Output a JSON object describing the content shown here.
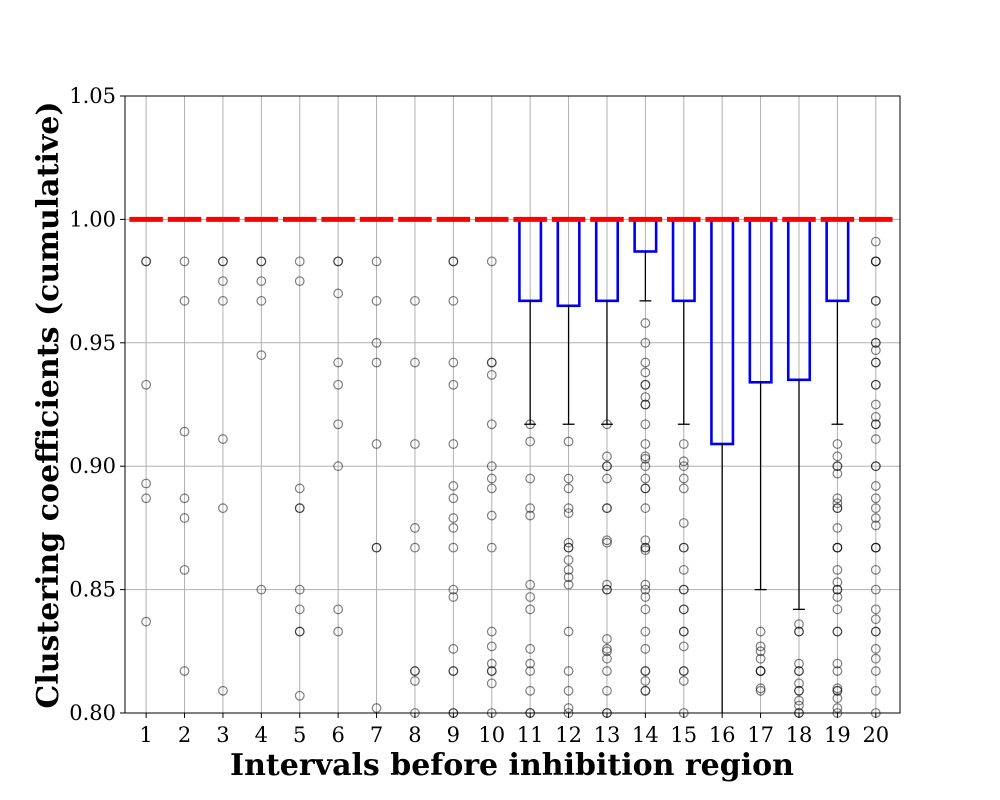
{
  "chart_data": {
    "type": "box",
    "title": "",
    "xlabel": "Intervals before inhibition region",
    "ylabel": "Clustering coefficients (cumulative)",
    "ylim": [
      0.8,
      1.05
    ],
    "yticks": [
      0.8,
      0.85,
      0.9,
      0.95,
      1.0,
      1.05
    ],
    "ytick_labels": [
      "0.80",
      "0.85",
      "0.90",
      "0.95",
      "1.00",
      "1.05"
    ],
    "categories": [
      "1",
      "2",
      "3",
      "4",
      "5",
      "6",
      "7",
      "8",
      "9",
      "10",
      "11",
      "12",
      "13",
      "14",
      "15",
      "16",
      "17",
      "18",
      "19",
      "20"
    ],
    "grid": true,
    "median_color": "#ff0000",
    "box_color": "#0000ee",
    "whisker_color": "#000000",
    "boxes": [
      {
        "q1": 1.0,
        "median": 1.0,
        "q3": 1.0,
        "whislo": 1.0,
        "whishi": 1.0
      },
      {
        "q1": 1.0,
        "median": 1.0,
        "q3": 1.0,
        "whislo": 1.0,
        "whishi": 1.0
      },
      {
        "q1": 1.0,
        "median": 1.0,
        "q3": 1.0,
        "whislo": 1.0,
        "whishi": 1.0
      },
      {
        "q1": 1.0,
        "median": 1.0,
        "q3": 1.0,
        "whislo": 1.0,
        "whishi": 1.0
      },
      {
        "q1": 1.0,
        "median": 1.0,
        "q3": 1.0,
        "whislo": 1.0,
        "whishi": 1.0
      },
      {
        "q1": 1.0,
        "median": 1.0,
        "q3": 1.0,
        "whislo": 1.0,
        "whishi": 1.0
      },
      {
        "q1": 1.0,
        "median": 1.0,
        "q3": 1.0,
        "whislo": 1.0,
        "whishi": 1.0
      },
      {
        "q1": 1.0,
        "median": 1.0,
        "q3": 1.0,
        "whislo": 1.0,
        "whishi": 1.0
      },
      {
        "q1": 1.0,
        "median": 1.0,
        "q3": 1.0,
        "whislo": 1.0,
        "whishi": 1.0
      },
      {
        "q1": 1.0,
        "median": 1.0,
        "q3": 1.0,
        "whislo": 1.0,
        "whishi": 1.0
      },
      {
        "q1": 0.967,
        "median": 1.0,
        "q3": 1.0,
        "whislo": 0.917,
        "whishi": 1.0
      },
      {
        "q1": 0.965,
        "median": 1.0,
        "q3": 1.0,
        "whislo": 0.917,
        "whishi": 1.0
      },
      {
        "q1": 0.967,
        "median": 1.0,
        "q3": 1.0,
        "whislo": 0.917,
        "whishi": 1.0
      },
      {
        "q1": 0.987,
        "median": 1.0,
        "q3": 1.0,
        "whislo": 0.967,
        "whishi": 1.0
      },
      {
        "q1": 0.967,
        "median": 1.0,
        "q3": 1.0,
        "whislo": 0.917,
        "whishi": 1.0
      },
      {
        "q1": 0.909,
        "median": 1.0,
        "q3": 1.0,
        "whislo": 0.78,
        "whishi": 1.0
      },
      {
        "q1": 0.934,
        "median": 1.0,
        "q3": 1.0,
        "whislo": 0.85,
        "whishi": 1.0
      },
      {
        "q1": 0.935,
        "median": 1.0,
        "q3": 1.0,
        "whislo": 0.842,
        "whishi": 1.0
      },
      {
        "q1": 0.967,
        "median": 1.0,
        "q3": 1.0,
        "whislo": 0.917,
        "whishi": 1.0
      },
      {
        "q1": 1.0,
        "median": 1.0,
        "q3": 1.0,
        "whislo": 1.0,
        "whishi": 1.0
      }
    ],
    "outliers": [
      [
        0.983,
        0.983,
        0.933,
        0.893,
        0.887,
        0.837
      ],
      [
        0.983,
        0.967,
        0.914,
        0.887,
        0.879,
        0.858,
        0.817
      ],
      [
        0.983,
        0.983,
        0.975,
        0.967,
        0.911,
        0.883,
        0.809
      ],
      [
        0.983,
        0.983,
        0.975,
        0.967,
        0.945,
        0.85
      ],
      [
        0.983,
        0.975,
        0.891,
        0.883,
        0.883,
        0.85,
        0.842,
        0.833,
        0.833,
        0.807
      ],
      [
        0.983,
        0.983,
        0.97,
        0.942,
        0.933,
        0.917,
        0.9,
        0.842,
        0.833
      ],
      [
        0.983,
        0.967,
        0.95,
        0.942,
        0.909,
        0.867,
        0.867,
        0.802
      ],
      [
        0.967,
        0.942,
        0.909,
        0.875,
        0.867,
        0.817,
        0.817,
        0.813,
        0.8
      ],
      [
        0.983,
        0.983,
        0.967,
        0.942,
        0.933,
        0.909,
        0.892,
        0.887,
        0.879,
        0.875,
        0.867,
        0.85,
        0.847,
        0.826,
        0.817,
        0.817,
        0.8,
        0.8
      ],
      [
        0.983,
        0.942,
        0.942,
        0.937,
        0.917,
        0.9,
        0.895,
        0.891,
        0.88,
        0.867,
        0.833,
        0.827,
        0.82,
        0.817,
        0.817,
        0.812,
        0.8
      ],
      [
        0.917,
        0.91,
        0.895,
        0.883,
        0.88,
        0.852,
        0.847,
        0.842,
        0.826,
        0.82,
        0.817,
        0.809,
        0.8,
        0.8
      ],
      [
        0.91,
        0.895,
        0.891,
        0.883,
        0.881,
        0.869,
        0.867,
        0.867,
        0.862,
        0.858,
        0.855,
        0.852,
        0.833,
        0.817,
        0.809,
        0.802,
        0.8
      ],
      [
        0.917,
        0.904,
        0.9,
        0.9,
        0.895,
        0.883,
        0.883,
        0.87,
        0.869,
        0.852,
        0.85,
        0.85,
        0.83,
        0.826,
        0.825,
        0.822,
        0.817,
        0.809,
        0.8,
        0.8
      ],
      [
        0.958,
        0.95,
        0.942,
        0.938,
        0.933,
        0.933,
        0.928,
        0.925,
        0.925,
        0.917,
        0.909,
        0.904,
        0.903,
        0.9,
        0.895,
        0.891,
        0.891,
        0.883,
        0.87,
        0.867,
        0.867,
        0.866,
        0.852,
        0.85,
        0.847,
        0.842,
        0.833,
        0.826,
        0.817,
        0.817,
        0.813,
        0.809,
        0.809
      ],
      [
        0.909,
        0.902,
        0.9,
        0.895,
        0.891,
        0.877,
        0.867,
        0.867,
        0.858,
        0.85,
        0.85,
        0.842,
        0.842,
        0.833,
        0.833,
        0.827,
        0.817,
        0.817,
        0.813,
        0.8
      ],
      [],
      [
        0.833,
        0.827,
        0.825,
        0.822,
        0.817,
        0.817,
        0.817,
        0.81,
        0.809
      ],
      [
        0.836,
        0.833,
        0.833,
        0.82,
        0.817,
        0.817,
        0.812,
        0.809,
        0.809,
        0.805,
        0.803,
        0.8,
        0.8
      ],
      [
        0.909,
        0.904,
        0.9,
        0.9,
        0.897,
        0.887,
        0.885,
        0.883,
        0.883,
        0.875,
        0.867,
        0.867,
        0.867,
        0.858,
        0.853,
        0.85,
        0.85,
        0.847,
        0.842,
        0.833,
        0.833,
        0.82,
        0.817,
        0.81,
        0.809,
        0.809,
        0.806,
        0.802,
        0.8
      ],
      [
        0.991,
        0.983,
        0.983,
        0.983,
        0.967,
        0.967,
        0.958,
        0.95,
        0.95,
        0.947,
        0.942,
        0.942,
        0.933,
        0.933,
        0.925,
        0.92,
        0.917,
        0.917,
        0.911,
        0.9,
        0.9,
        0.892,
        0.887,
        0.883,
        0.879,
        0.876,
        0.867,
        0.867,
        0.867,
        0.858,
        0.85,
        0.842,
        0.838,
        0.833,
        0.833,
        0.826,
        0.822,
        0.817,
        0.809,
        0.8
      ]
    ]
  }
}
